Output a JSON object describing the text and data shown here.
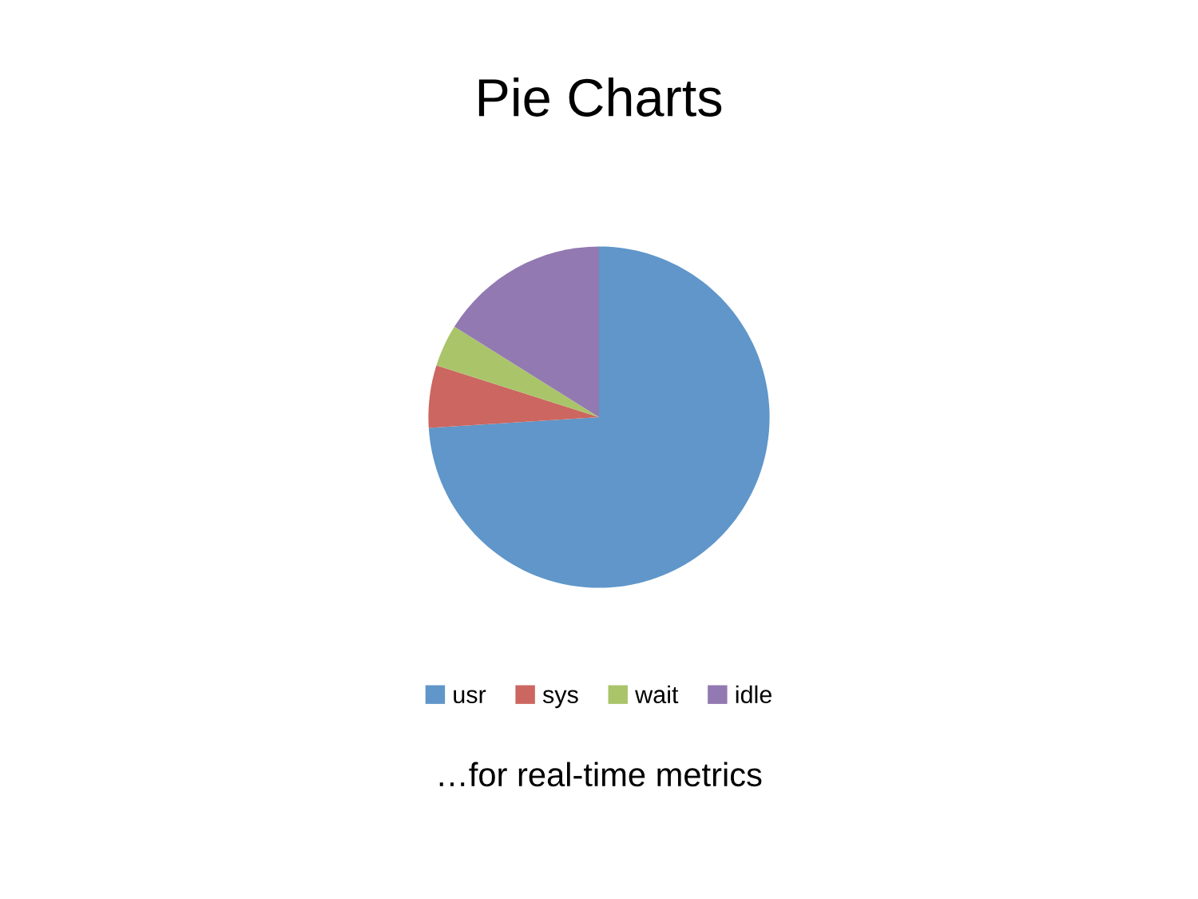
{
  "chart_data": {
    "type": "pie",
    "title": "Pie Charts",
    "categories": [
      "usr",
      "sys",
      "wait",
      "idle"
    ],
    "values": [
      74.0,
      5.9,
      4.0,
      16.1
    ],
    "colors": [
      "#6096c9",
      "#cc6660",
      "#aac46a",
      "#9279b1"
    ],
    "legend": "bottom",
    "annotations": [
      "…for real-time metrics"
    ]
  }
}
